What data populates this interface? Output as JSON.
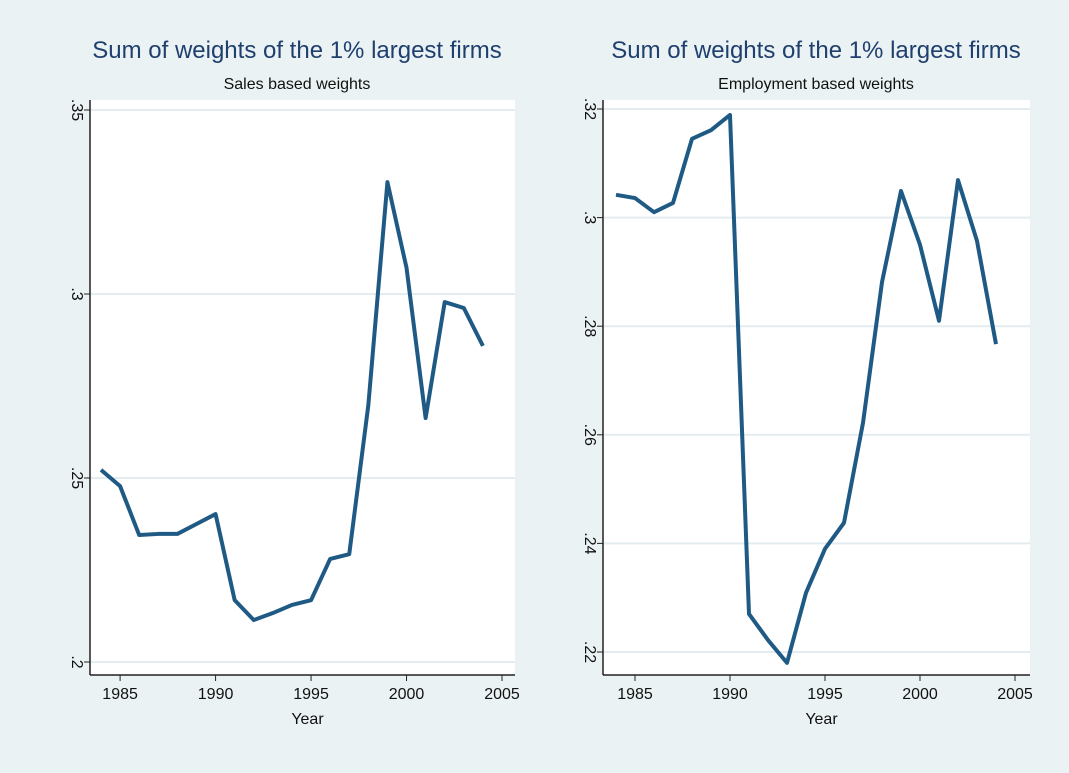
{
  "chart_data": [
    {
      "type": "line",
      "title": "Sum of weights of the 1% largest firms",
      "subtitle": "Sales based weights",
      "x_label": "Year",
      "x": [
        1984,
        1985,
        1986,
        1987,
        1988,
        1989,
        1990,
        1991,
        1992,
        1993,
        1994,
        1995,
        1996,
        1997,
        1998,
        1999,
        2000,
        2001,
        2002,
        2003,
        2004
      ],
      "series": [
        {
          "color": "#1f5a85",
          "values": [
            0.2522,
            0.2478,
            0.2345,
            0.2348,
            0.2348,
            0.2375,
            0.2402,
            0.2168,
            0.2114,
            0.2133,
            0.2155,
            0.2168,
            0.228,
            0.2293,
            0.2698,
            0.3304,
            0.3071,
            0.2663,
            0.2978,
            0.2962,
            0.2859
          ]
        }
      ],
      "xlim": [
        1984,
        2005
      ],
      "xticks": [
        1985,
        1990,
        1995,
        2000,
        2005
      ],
      "ylim": [
        0.2,
        0.35
      ],
      "yticks": [
        {
          "value": 0.2,
          "label": ".2"
        },
        {
          "value": 0.25,
          "label": ".25"
        },
        {
          "value": 0.3,
          "label": ".3"
        },
        {
          "value": 0.35,
          "label": ".35"
        }
      ],
      "grid": true
    },
    {
      "type": "line",
      "title": "Sum of weights of the 1% largest firms",
      "subtitle": "Employment based weights",
      "x_label": "Year",
      "x": [
        1984,
        1985,
        1986,
        1987,
        1988,
        1989,
        1990,
        1991,
        1992,
        1993,
        1994,
        1995,
        1996,
        1997,
        1998,
        1999,
        2000,
        2001,
        2002,
        2003,
        2004
      ],
      "series": [
        {
          "color": "#1f5a85",
          "values": [
            0.3042,
            0.3036,
            0.301,
            0.3027,
            0.3145,
            0.3161,
            0.3189,
            0.227,
            0.2222,
            0.218,
            0.2309,
            0.239,
            0.2438,
            0.2622,
            0.2881,
            0.3049,
            0.295,
            0.281,
            0.3069,
            0.2957,
            0.2767
          ]
        }
      ],
      "xlim": [
        1984,
        2005
      ],
      "xticks": [
        1985,
        1990,
        1995,
        2000,
        2005
      ],
      "ylim": [
        0.22,
        0.32
      ],
      "yticks": [
        {
          "value": 0.22,
          "label": ".22"
        },
        {
          "value": 0.24,
          "label": ".24"
        },
        {
          "value": 0.26,
          "label": ".26"
        },
        {
          "value": 0.28,
          "label": ".28"
        },
        {
          "value": 0.3,
          "label": ".3"
        },
        {
          "value": 0.32,
          "label": ".32"
        }
      ],
      "grid": true
    }
  ]
}
